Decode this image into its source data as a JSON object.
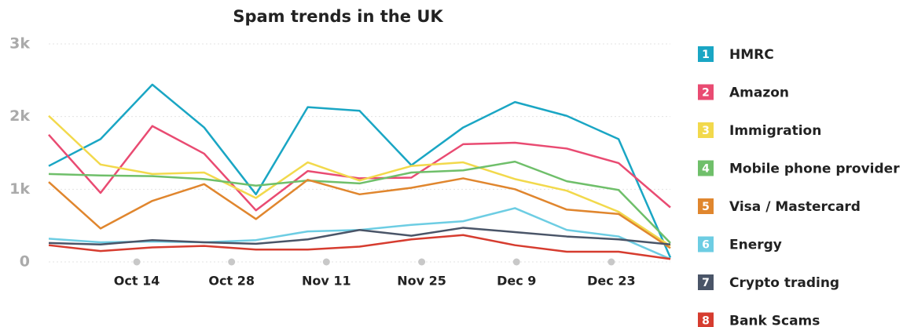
{
  "chart_data": {
    "type": "line",
    "title": "Spam trends in the UK",
    "x": [
      0,
      1,
      2,
      3,
      4,
      5,
      6,
      7,
      8,
      9,
      10,
      11,
      12
    ],
    "xlim": [
      0,
      12
    ],
    "xticks": [
      {
        "value": 1.7,
        "label": "Oct 14"
      },
      {
        "value": 3.53,
        "label": "Oct 28"
      },
      {
        "value": 5.36,
        "label": "Nov 11"
      },
      {
        "value": 7.2,
        "label": "Nov 25"
      },
      {
        "value": 9.03,
        "label": "Dec 9"
      },
      {
        "value": 10.86,
        "label": "Dec 23"
      }
    ],
    "ylim": [
      0,
      3000
    ],
    "yticks": [
      0,
      {
        "value": 1000,
        "label": "1k"
      },
      {
        "value": 2000,
        "label": "2k"
      },
      {
        "value": 3000,
        "label": "3k"
      }
    ],
    "grid": true,
    "legend_markers": [
      "1",
      "2",
      "3",
      "4",
      "5",
      "6",
      "7",
      "8"
    ],
    "series": [
      {
        "name": "HMRC",
        "color": "#1aa6c4",
        "values": [
          1320,
          1690,
          2440,
          1850,
          930,
          2130,
          2080,
          1330,
          1850,
          2200,
          2010,
          1690,
          60
        ]
      },
      {
        "name": "Amazon",
        "color": "#e94b72",
        "values": [
          1750,
          950,
          1870,
          1490,
          710,
          1250,
          1150,
          1160,
          1620,
          1640,
          1560,
          1360,
          750
        ]
      },
      {
        "name": "Immigration",
        "color": "#f2d94c",
        "values": [
          2010,
          1340,
          1210,
          1230,
          880,
          1370,
          1120,
          1320,
          1370,
          1140,
          980,
          690,
          220
        ]
      },
      {
        "name": "Mobile phone provider",
        "color": "#6fbf6a",
        "values": [
          1210,
          1190,
          1180,
          1140,
          1050,
          1120,
          1080,
          1230,
          1260,
          1380,
          1110,
          990,
          260
        ]
      },
      {
        "name": "Visa / Mastercard",
        "color": "#e0862e",
        "values": [
          1100,
          460,
          840,
          1070,
          590,
          1130,
          930,
          1020,
          1150,
          1000,
          720,
          660,
          190
        ]
      },
      {
        "name": "Energy",
        "color": "#6dcde3",
        "values": [
          320,
          270,
          280,
          270,
          300,
          420,
          440,
          510,
          560,
          740,
          440,
          350,
          40
        ]
      },
      {
        "name": "Crypto trading",
        "color": "#4a5568",
        "values": [
          260,
          240,
          300,
          270,
          250,
          310,
          440,
          360,
          470,
          410,
          350,
          310,
          240
        ]
      },
      {
        "name": "Bank Scams",
        "color": "#d63c2f",
        "values": [
          230,
          150,
          200,
          220,
          170,
          170,
          210,
          310,
          370,
          230,
          140,
          140,
          40
        ]
      }
    ]
  }
}
